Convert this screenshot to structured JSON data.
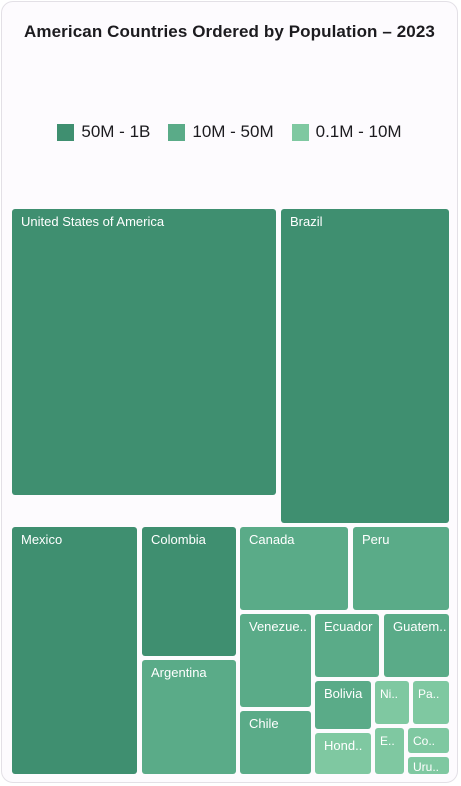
{
  "chart_data": {
    "type": "treemap",
    "title": "American Countries Ordered by Population – 2023",
    "legend": {
      "placement": "top",
      "groups": [
        {
          "label": "50M - 1B",
          "color": "#3f8f70"
        },
        {
          "label": "10M - 50M",
          "color": "#5aab88"
        },
        {
          "label": "0.1M - 10M",
          "color": "#7fc8a1"
        }
      ]
    },
    "items": [
      {
        "label": "United States of America",
        "group": 0,
        "display": "United States of America"
      },
      {
        "label": "Brazil",
        "group": 0,
        "display": "Brazil"
      },
      {
        "label": "Mexico",
        "group": 0,
        "display": "Mexico"
      },
      {
        "label": "Colombia",
        "group": 0,
        "display": "Colombia"
      },
      {
        "label": "Argentina",
        "group": 1,
        "display": "Argentina"
      },
      {
        "label": "Canada",
        "group": 1,
        "display": "Canada"
      },
      {
        "label": "Peru",
        "group": 1,
        "display": "Peru"
      },
      {
        "label": "Venezuela",
        "group": 1,
        "display": "Venezue.."
      },
      {
        "label": "Chile",
        "group": 1,
        "display": "Chile"
      },
      {
        "label": "Ecuador",
        "group": 1,
        "display": "Ecuador"
      },
      {
        "label": "Guatemala",
        "group": 1,
        "display": "Guatem.."
      },
      {
        "label": "Bolivia",
        "group": 1,
        "display": "Bolivia"
      },
      {
        "label": "Honduras",
        "group": 2,
        "display": "Hond.."
      },
      {
        "label": "Nicaragua",
        "group": 2,
        "display": "Ni.."
      },
      {
        "label": "Paraguay",
        "group": 2,
        "display": "Pa.."
      },
      {
        "label": "El Salvador",
        "group": 2,
        "display": "E.."
      },
      {
        "label": "Costa Rica",
        "group": 2,
        "display": "Co.."
      },
      {
        "label": "Uruguay",
        "group": 2,
        "display": "Uru.."
      }
    ]
  }
}
